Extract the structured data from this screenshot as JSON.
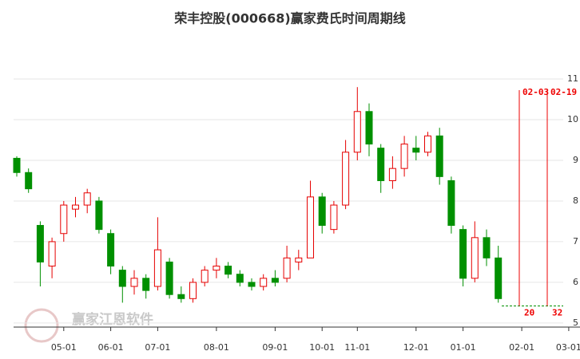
{
  "chart_data": {
    "type": "candlestick",
    "title": "荣丰控股(000668)赢家费氏时间周期线",
    "watermark": "赢家江恩软件",
    "categories": [
      null,
      null,
      null,
      null,
      "05-01",
      null,
      null,
      null,
      "06-01",
      null,
      null,
      null,
      "07-01",
      null,
      null,
      null,
      null,
      "08-01",
      null,
      null,
      null,
      null,
      "09-01",
      null,
      null,
      null,
      "10-01",
      null,
      null,
      "11-01",
      null,
      null,
      null,
      null,
      "12-01",
      null,
      null,
      null,
      "01-01",
      null,
      null,
      null,
      null,
      "02-01",
      null,
      null,
      null,
      "03-01"
    ],
    "open": [
      9.05,
      8.7,
      7.4,
      6.4,
      7.2,
      7.8,
      7.9,
      8.0,
      7.2,
      6.3,
      5.9,
      6.1,
      5.9,
      6.5,
      5.7,
      5.6,
      6.0,
      6.3,
      6.4,
      6.2,
      6.0,
      5.9,
      6.1,
      6.1,
      6.5,
      6.6,
      8.1,
      7.3,
      7.9,
      9.2,
      10.2,
      9.3,
      8.5,
      8.8,
      9.3,
      9.2,
      9.6,
      8.5,
      7.3,
      6.1,
      7.1,
      6.6,
      null,
      null,
      null,
      null,
      null,
      null
    ],
    "high": [
      9.1,
      8.8,
      7.5,
      7.1,
      8.0,
      8.1,
      8.3,
      8.1,
      7.3,
      6.4,
      6.3,
      6.2,
      7.6,
      6.6,
      5.9,
      6.1,
      6.4,
      6.6,
      6.5,
      6.3,
      6.1,
      6.2,
      6.3,
      6.9,
      6.8,
      8.5,
      8.2,
      8.0,
      9.5,
      10.8,
      10.4,
      9.4,
      9.1,
      9.6,
      9.6,
      9.7,
      9.8,
      8.6,
      7.4,
      7.5,
      7.3,
      6.9,
      null,
      null,
      null,
      null,
      null,
      null
    ],
    "low": [
      8.6,
      8.2,
      5.9,
      6.1,
      7.0,
      7.6,
      7.7,
      7.2,
      6.2,
      5.5,
      5.7,
      5.6,
      5.8,
      5.6,
      5.5,
      5.5,
      5.9,
      6.1,
      6.1,
      5.9,
      5.8,
      5.8,
      5.9,
      6.0,
      6.3,
      6.6,
      7.2,
      7.2,
      7.8,
      9.0,
      9.1,
      8.2,
      8.3,
      8.6,
      9.0,
      9.1,
      8.4,
      7.2,
      5.9,
      6.0,
      6.4,
      5.5,
      null,
      null,
      null,
      null,
      null,
      null
    ],
    "close": [
      8.7,
      8.3,
      6.5,
      7.0,
      7.9,
      7.9,
      8.2,
      7.3,
      6.4,
      5.9,
      6.1,
      5.8,
      6.8,
      5.7,
      5.6,
      6.0,
      6.3,
      6.4,
      6.2,
      6.0,
      5.9,
      6.1,
      6.0,
      6.6,
      6.6,
      8.1,
      7.4,
      7.9,
      9.2,
      10.2,
      9.4,
      8.5,
      8.8,
      9.4,
      9.2,
      9.6,
      8.6,
      7.4,
      6.1,
      7.1,
      6.6,
      5.6,
      null,
      null,
      null,
      null,
      null,
      null
    ],
    "up_color": "#e60000",
    "down_color": "#009000",
    "ylim": [
      4.9,
      11.2
    ],
    "yticks": [
      5,
      6,
      7,
      8,
      9,
      10,
      11
    ],
    "grid": true,
    "hline": 5.42,
    "cycle_lines": [
      {
        "date": "02-03",
        "days": 20
      },
      {
        "date": "02-19",
        "days": 32
      }
    ]
  }
}
